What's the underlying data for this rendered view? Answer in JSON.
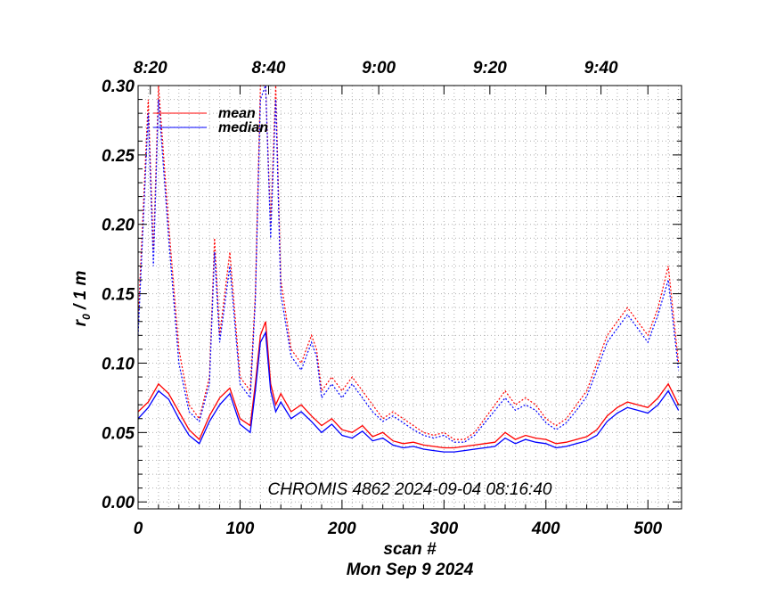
{
  "chart_data": {
    "type": "line",
    "title": "",
    "xlabel": "scan #",
    "ylabel": "r",
    "ylabel_subscript": "0",
    "ylabel_suffix": " / 1 m",
    "date_label": "Mon Sep  9 2024",
    "annotation": "CHROMIS 4862 2024-09-04 08:16:40",
    "xlim": [
      0,
      533
    ],
    "ylim": [
      -0.005,
      0.3
    ],
    "x_ticks": [
      0,
      100,
      200,
      300,
      400,
      500
    ],
    "y_ticks": [
      0.0,
      0.05,
      0.1,
      0.15,
      0.2,
      0.25,
      0.3
    ],
    "y_tick_labels": [
      "0.00",
      "0.05",
      "0.10",
      "0.15",
      "0.20",
      "0.25",
      "0.30"
    ],
    "top_axis_labels": [
      {
        "label": "8:20",
        "scan": 12
      },
      {
        "label": "8:40",
        "scan": 128
      },
      {
        "label": "9:00",
        "scan": 236
      },
      {
        "label": "9:20",
        "scan": 345
      },
      {
        "label": "9:40",
        "scan": 454
      }
    ],
    "grid": true,
    "legend": {
      "position": "top-left",
      "entries": [
        {
          "name": "mean",
          "color": "#ff0000"
        },
        {
          "name": "median",
          "color": "#0000ff"
        }
      ]
    },
    "series": [
      {
        "name": "mean",
        "color": "#ff0000",
        "style": "solid",
        "x": [
          0,
          10,
          20,
          30,
          40,
          50,
          60,
          70,
          80,
          90,
          100,
          110,
          115,
          120,
          125,
          130,
          135,
          140,
          150,
          160,
          170,
          180,
          190,
          200,
          210,
          220,
          230,
          240,
          250,
          260,
          270,
          280,
          290,
          300,
          310,
          320,
          330,
          340,
          350,
          360,
          370,
          380,
          390,
          400,
          410,
          420,
          430,
          440,
          450,
          460,
          470,
          480,
          490,
          500,
          510,
          520,
          530
        ],
        "y": [
          0.065,
          0.072,
          0.085,
          0.078,
          0.065,
          0.052,
          0.045,
          0.062,
          0.075,
          0.082,
          0.06,
          0.055,
          0.085,
          0.12,
          0.13,
          0.085,
          0.07,
          0.078,
          0.065,
          0.07,
          0.062,
          0.055,
          0.06,
          0.052,
          0.05,
          0.055,
          0.047,
          0.05,
          0.044,
          0.042,
          0.043,
          0.041,
          0.04,
          0.039,
          0.039,
          0.04,
          0.041,
          0.042,
          0.043,
          0.05,
          0.045,
          0.048,
          0.046,
          0.045,
          0.042,
          0.043,
          0.045,
          0.047,
          0.052,
          0.062,
          0.068,
          0.072,
          0.07,
          0.068,
          0.075,
          0.085,
          0.07
        ]
      },
      {
        "name": "median",
        "color": "#0000ff",
        "style": "solid",
        "x": [
          0,
          10,
          20,
          30,
          40,
          50,
          60,
          70,
          80,
          90,
          100,
          110,
          115,
          120,
          125,
          130,
          135,
          140,
          150,
          160,
          170,
          180,
          190,
          200,
          210,
          220,
          230,
          240,
          250,
          260,
          270,
          280,
          290,
          300,
          310,
          320,
          330,
          340,
          350,
          360,
          370,
          380,
          390,
          400,
          410,
          420,
          430,
          440,
          450,
          460,
          470,
          480,
          490,
          500,
          510,
          520,
          530
        ],
        "y": [
          0.06,
          0.068,
          0.08,
          0.074,
          0.06,
          0.048,
          0.042,
          0.058,
          0.07,
          0.078,
          0.056,
          0.05,
          0.08,
          0.115,
          0.122,
          0.08,
          0.065,
          0.072,
          0.06,
          0.065,
          0.058,
          0.05,
          0.056,
          0.048,
          0.046,
          0.051,
          0.044,
          0.046,
          0.041,
          0.039,
          0.04,
          0.038,
          0.037,
          0.036,
          0.036,
          0.037,
          0.038,
          0.039,
          0.04,
          0.046,
          0.042,
          0.045,
          0.043,
          0.042,
          0.039,
          0.04,
          0.042,
          0.044,
          0.048,
          0.058,
          0.064,
          0.068,
          0.066,
          0.064,
          0.07,
          0.08,
          0.066
        ]
      },
      {
        "name": "mean (dotted upper)",
        "color": "#ff0000",
        "style": "dotted",
        "x": [
          0,
          10,
          15,
          20,
          30,
          40,
          50,
          60,
          70,
          75,
          80,
          90,
          100,
          110,
          115,
          120,
          125,
          130,
          135,
          140,
          150,
          160,
          170,
          175,
          180,
          190,
          200,
          210,
          220,
          230,
          240,
          250,
          260,
          270,
          280,
          290,
          300,
          310,
          320,
          330,
          340,
          350,
          360,
          370,
          380,
          390,
          400,
          410,
          420,
          430,
          440,
          450,
          460,
          470,
          480,
          490,
          500,
          510,
          520,
          530
        ],
        "y": [
          0.13,
          0.29,
          0.18,
          0.3,
          0.2,
          0.11,
          0.07,
          0.06,
          0.09,
          0.19,
          0.12,
          0.18,
          0.09,
          0.08,
          0.15,
          0.3,
          0.3,
          0.2,
          0.3,
          0.16,
          0.11,
          0.1,
          0.12,
          0.11,
          0.08,
          0.09,
          0.08,
          0.09,
          0.08,
          0.07,
          0.06,
          0.065,
          0.06,
          0.055,
          0.05,
          0.048,
          0.05,
          0.045,
          0.045,
          0.05,
          0.06,
          0.07,
          0.08,
          0.07,
          0.075,
          0.07,
          0.06,
          0.055,
          0.06,
          0.07,
          0.08,
          0.1,
          0.12,
          0.13,
          0.14,
          0.13,
          0.12,
          0.14,
          0.17,
          0.1
        ]
      },
      {
        "name": "median (dotted upper)",
        "color": "#0000ff",
        "style": "dotted",
        "x": [
          0,
          10,
          15,
          20,
          30,
          40,
          50,
          60,
          70,
          75,
          80,
          90,
          100,
          110,
          115,
          120,
          125,
          130,
          135,
          140,
          150,
          160,
          170,
          175,
          180,
          190,
          200,
          210,
          220,
          230,
          240,
          250,
          260,
          270,
          280,
          290,
          300,
          310,
          320,
          330,
          340,
          350,
          360,
          370,
          380,
          390,
          400,
          410,
          420,
          430,
          440,
          450,
          460,
          470,
          480,
          490,
          500,
          510,
          520,
          530
        ],
        "y": [
          0.12,
          0.28,
          0.17,
          0.29,
          0.19,
          0.1,
          0.065,
          0.058,
          0.085,
          0.18,
          0.115,
          0.17,
          0.085,
          0.075,
          0.145,
          0.29,
          0.3,
          0.19,
          0.29,
          0.15,
          0.105,
          0.095,
          0.115,
          0.105,
          0.075,
          0.085,
          0.075,
          0.085,
          0.075,
          0.065,
          0.058,
          0.062,
          0.057,
          0.052,
          0.048,
          0.046,
          0.048,
          0.043,
          0.043,
          0.048,
          0.057,
          0.066,
          0.075,
          0.066,
          0.07,
          0.066,
          0.057,
          0.052,
          0.057,
          0.066,
          0.076,
          0.095,
          0.115,
          0.125,
          0.135,
          0.125,
          0.115,
          0.135,
          0.16,
          0.095
        ]
      }
    ]
  }
}
